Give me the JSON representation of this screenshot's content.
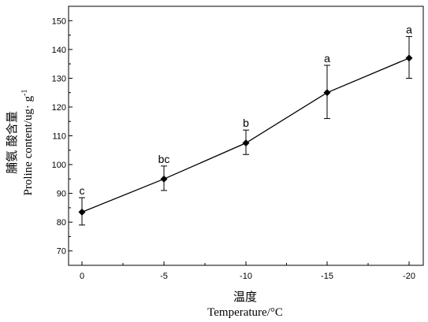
{
  "chart_data": {
    "type": "line",
    "categories": [
      "0",
      "-5",
      "-10",
      "-15",
      "-20"
    ],
    "series": [
      {
        "values": [
          83.5,
          95,
          107.5,
          125,
          137
        ],
        "error_upper": [
          88.5,
          99.5,
          112,
          134.5,
          144.5
        ],
        "error_lower": [
          79,
          91,
          103.5,
          116,
          130
        ],
        "significance": [
          "c",
          "bc",
          "b",
          "a",
          "a"
        ]
      }
    ],
    "xlabel_cn": "温度",
    "xlabel": "Temperature/°C",
    "ylabel_cn": "脯氨 酸含量",
    "ylabel": "Proline content/ug· g",
    "ylabel_sup": "-1",
    "ylim": [
      65,
      155
    ],
    "yticks": [
      70,
      80,
      90,
      100,
      110,
      120,
      130,
      140,
      150
    ],
    "marker": "diamond",
    "color": "#000000"
  }
}
